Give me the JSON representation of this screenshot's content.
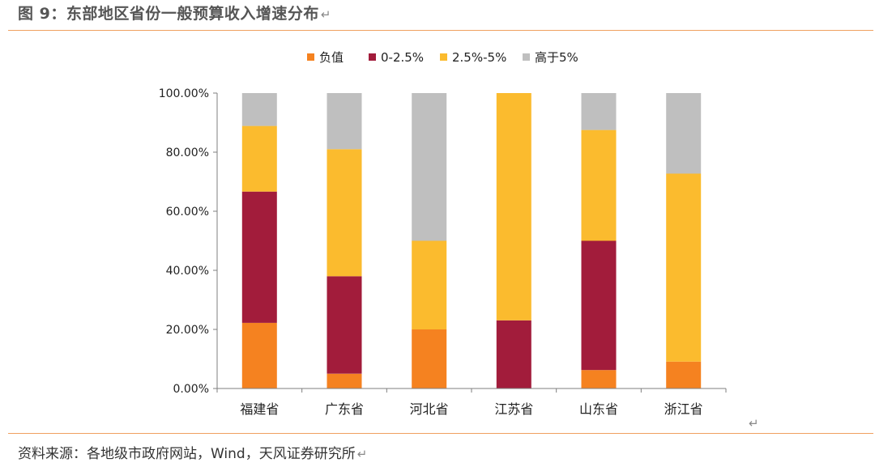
{
  "page": {
    "title": "图 9：东部地区省份一般预算收入增速分布",
    "return_mark": "↵",
    "source": "资料来源：各地级市政府网站，Wind，天风证券研究所"
  },
  "chart_data": {
    "type": "bar",
    "stacked": true,
    "categories": [
      "福建省",
      "广东省",
      "河北省",
      "江苏省",
      "山东省",
      "浙江省"
    ],
    "series": [
      {
        "name": "负值",
        "color": "#F58220",
        "values": [
          22.22,
          5.0,
          20.0,
          0.0,
          6.25,
          9.09
        ]
      },
      {
        "name": "0-2.5%",
        "color": "#A21C3B",
        "values": [
          44.44,
          33.0,
          0.0,
          23.08,
          43.75,
          0.0
        ]
      },
      {
        "name": "2.5%-5%",
        "color": "#FBBB2E",
        "values": [
          22.22,
          43.0,
          30.0,
          76.92,
          37.5,
          63.64
        ]
      },
      {
        "name": "高于5%",
        "color": "#BFBFBF",
        "values": [
          11.12,
          19.0,
          50.0,
          0.0,
          12.5,
          27.27
        ]
      }
    ],
    "ylim": [
      0,
      100
    ],
    "yticks": [
      "0.00%",
      "20.00%",
      "40.00%",
      "60.00%",
      "80.00%",
      "100.00%"
    ],
    "ytick_values": [
      0,
      20,
      40,
      60,
      80,
      100
    ],
    "legend_position": "top-center",
    "grid": false,
    "title": "",
    "xlabel": "",
    "ylabel": ""
  }
}
